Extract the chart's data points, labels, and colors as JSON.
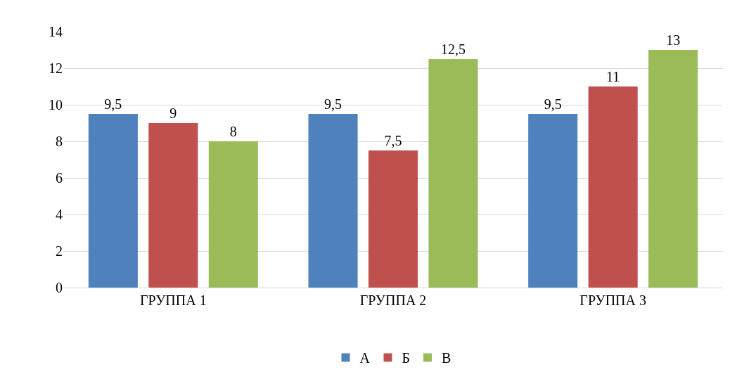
{
  "chart_data": {
    "type": "bar",
    "categories": [
      "ГРУППА 1",
      "ГРУППА 2",
      "ГРУППА 3"
    ],
    "series": [
      {
        "name": "А",
        "color": "#4f81bd",
        "values": [
          9.5,
          9.5,
          9.5
        ],
        "value_labels": [
          "9,5",
          "9,5",
          "9,5"
        ]
      },
      {
        "name": "Б",
        "color": "#c0504d",
        "values": [
          9,
          7.5,
          11
        ],
        "value_labels": [
          "9",
          "7,5",
          "11"
        ]
      },
      {
        "name": "В",
        "color": "#9bbb59",
        "values": [
          8,
          12.5,
          13
        ],
        "value_labels": [
          "8",
          "12,5",
          "13"
        ]
      }
    ],
    "ylim": [
      0,
      14
    ],
    "yticks": [
      0,
      2,
      4,
      6,
      8,
      10,
      12,
      14
    ],
    "grid": "y",
    "legend": "bottom"
  }
}
